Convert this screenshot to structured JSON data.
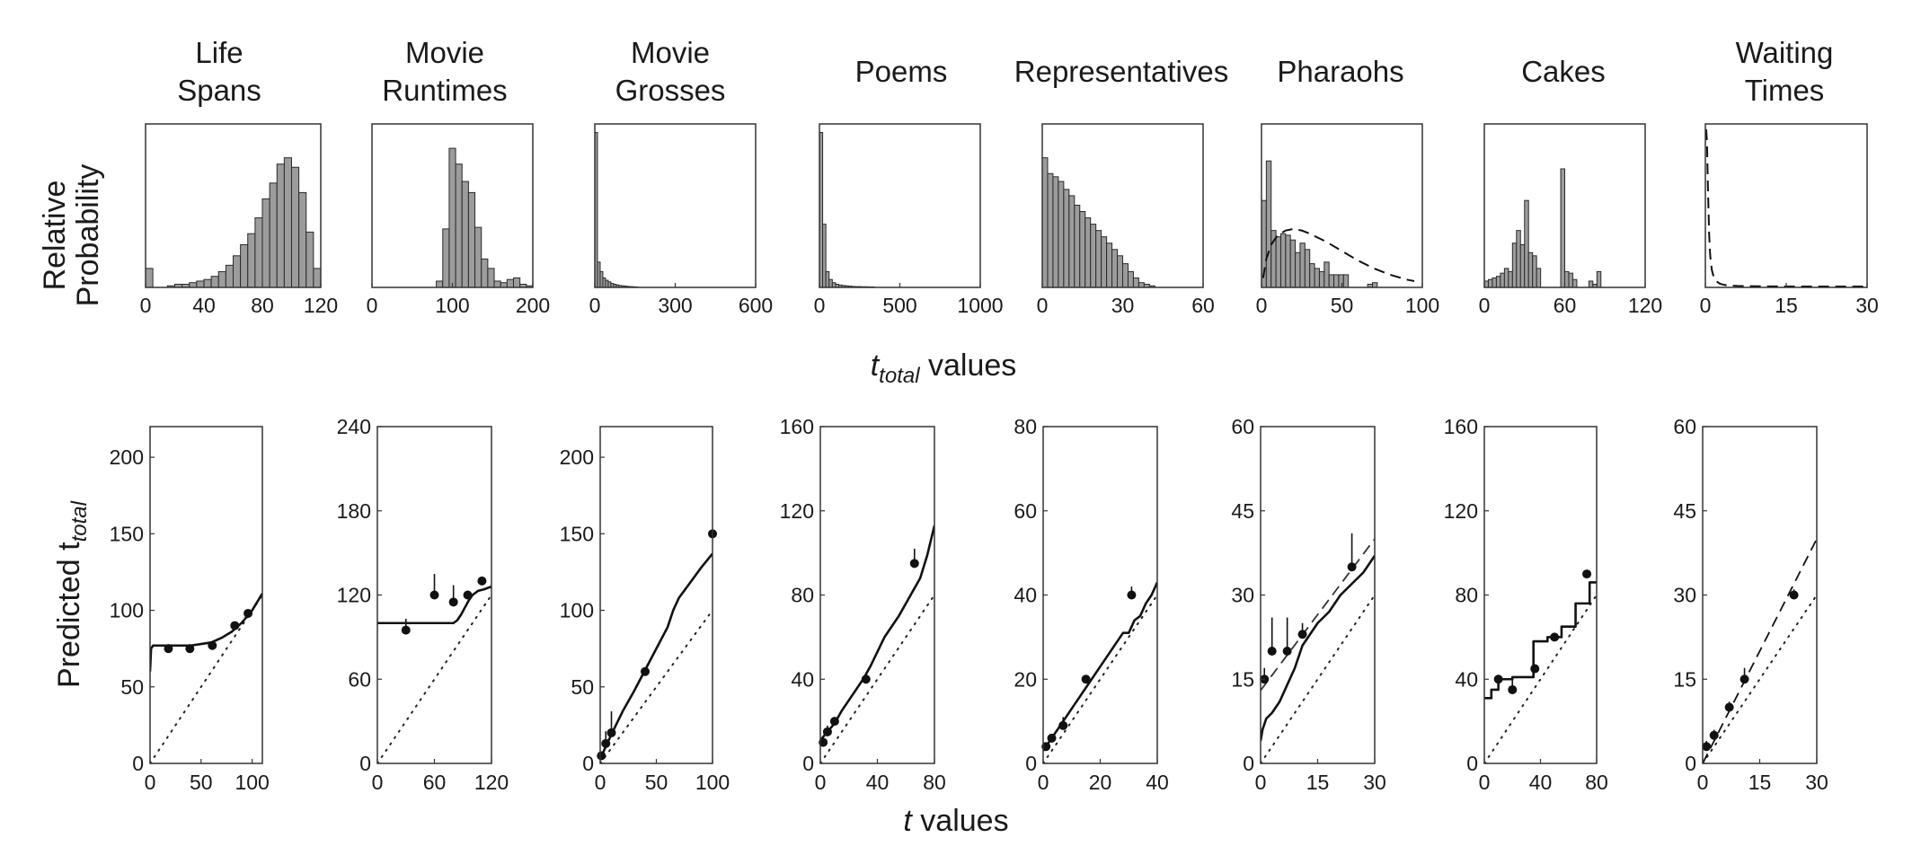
{
  "figure": {
    "top_ylabel": [
      "Relative",
      "Probability"
    ],
    "top_xlabel_main": "t",
    "top_xlabel_sub": "total",
    "top_xlabel_rest": " values",
    "bottom_ylabel_main": "Predicted  t",
    "bottom_ylabel_sub": "total",
    "bottom_xlabel_main": "t",
    "bottom_xlabel_rest": "  values"
  },
  "chart_data": [
    {
      "type": "bar",
      "title": [
        "Life",
        "Spans"
      ],
      "xlim": [
        0,
        120
      ],
      "xticks": [
        0,
        40,
        80,
        120
      ],
      "bin_width": 5,
      "bin_start": 0,
      "values": [
        0.12,
        0,
        0,
        0.01,
        0.02,
        0.02,
        0.03,
        0.04,
        0.05,
        0.07,
        0.1,
        0.14,
        0.2,
        0.27,
        0.34,
        0.44,
        0.56,
        0.66,
        0.78,
        0.82,
        0.76,
        0.6,
        0.35,
        0.12,
        0.03
      ],
      "overlay": null
    },
    {
      "type": "bar",
      "title": [
        "Movie",
        "Runtimes"
      ],
      "xlim": [
        0,
        200
      ],
      "xticks": [
        0,
        100,
        200
      ],
      "bin_width": 8,
      "bin_start": 80,
      "values": [
        0.04,
        0.37,
        0.88,
        0.78,
        0.67,
        0.6,
        0.38,
        0.18,
        0.12,
        0.04,
        0.03,
        0.05,
        0.06,
        0.02,
        0.01,
        0.05
      ],
      "overlay": null
    },
    {
      "type": "bar",
      "title": [
        "Movie",
        "Grosses"
      ],
      "xlim": [
        0,
        600
      ],
      "xticks": [
        0,
        300,
        600
      ],
      "bin_width": 10,
      "bin_start": 0,
      "values": [
        0.98,
        0.16,
        0.1,
        0.06,
        0.045,
        0.035,
        0.025,
        0.02,
        0.015,
        0.012,
        0.01,
        0.008,
        0.006,
        0.005,
        0.004,
        0.003
      ],
      "overlay": null
    },
    {
      "type": "bar",
      "title": [
        "Poems"
      ],
      "xlim": [
        0,
        1000
      ],
      "xticks": [
        0,
        500,
        1000
      ],
      "bin_width": 20,
      "bin_start": 0,
      "values": [
        0.98,
        0.4,
        0.1,
        0.05,
        0.03,
        0.02,
        0.015,
        0.012,
        0.01,
        0.008,
        0.006,
        0.005,
        0.005,
        0.004,
        0.004,
        0.003,
        0.003
      ],
      "overlay": null
    },
    {
      "type": "bar",
      "title": [
        "Representatives"
      ],
      "xlim": [
        0,
        60
      ],
      "xticks": [
        0,
        30,
        60
      ],
      "bin_width": 2,
      "bin_start": 0,
      "values": [
        0.82,
        0.72,
        0.7,
        0.67,
        0.62,
        0.58,
        0.52,
        0.48,
        0.44,
        0.4,
        0.36,
        0.32,
        0.28,
        0.24,
        0.2,
        0.15,
        0.1,
        0.06,
        0.03,
        0.02,
        0.01
      ],
      "overlay": null
    },
    {
      "type": "bar",
      "title": [
        "Pharaohs"
      ],
      "xlim": [
        0,
        100
      ],
      "xticks": [
        0,
        50,
        100
      ],
      "bin_width": 3,
      "bin_start": 0,
      "values": [
        0.55,
        0.8,
        0.36,
        0.32,
        0.34,
        0.33,
        0.3,
        0.22,
        0.28,
        0.24,
        0.15,
        0.12,
        0.1,
        0.16,
        0.08,
        0.08,
        0.08,
        0.08,
        0,
        0,
        0,
        0,
        0.02,
        0.03
      ],
      "overlay": {
        "style": "dashed",
        "x": [
          1,
          3,
          6,
          10,
          15,
          20,
          25,
          30,
          40,
          50,
          60,
          70,
          80,
          90,
          95
        ],
        "y": [
          0.06,
          0.18,
          0.27,
          0.33,
          0.36,
          0.37,
          0.36,
          0.34,
          0.29,
          0.23,
          0.17,
          0.12,
          0.08,
          0.05,
          0.04
        ]
      }
    },
    {
      "type": "bar",
      "title": [
        "Cakes"
      ],
      "xlim": [
        0,
        120
      ],
      "xticks": [
        0,
        60,
        120
      ],
      "bin_width": 3,
      "bin_start": 0,
      "values": [
        0.04,
        0.05,
        0.06,
        0.07,
        0.09,
        0.12,
        0.1,
        0.28,
        0.36,
        0.27,
        0.55,
        0.22,
        0.2,
        0.12,
        0,
        0,
        0,
        0,
        0,
        0.75,
        0.1,
        0.09,
        0.05,
        0,
        0,
        0,
        0.04,
        0.02,
        0.1
      ],
      "overlay": null
    },
    {
      "type": "line",
      "title": [
        "Waiting",
        "Times"
      ],
      "xlim": [
        0,
        30
      ],
      "xticks": [
        0,
        15,
        30
      ],
      "bars": null,
      "overlay": {
        "style": "dashed",
        "x": [
          0.15,
          0.3,
          0.5,
          0.7,
          0.9,
          1.2,
          1.6,
          2,
          2.6,
          3.2,
          4,
          6,
          10,
          15,
          20,
          25,
          30
        ],
        "y": [
          1.0,
          0.92,
          0.6,
          0.34,
          0.2,
          0.11,
          0.06,
          0.04,
          0.025,
          0.018,
          0.013,
          0.009,
          0.007,
          0.006,
          0.006,
          0.006,
          0.006
        ]
      }
    },
    {
      "type": "line",
      "xlim": [
        0,
        110
      ],
      "ylim": [
        0,
        220
      ],
      "xticks": [
        0,
        50,
        100
      ],
      "yticks": [
        0,
        50,
        100,
        150,
        200
      ],
      "model_curve": {
        "style": "solid",
        "x": [
          0,
          1,
          3,
          6,
          10,
          20,
          30,
          40,
          50,
          60,
          70,
          80,
          90,
          100,
          110
        ],
        "y": [
          60,
          75,
          77,
          77,
          77,
          77,
          77,
          77,
          78,
          79,
          82,
          86,
          92,
          100,
          111
        ]
      },
      "reference": {
        "style": "dashed",
        "x": [],
        "y": []
      },
      "points": {
        "x": [
          18,
          39,
          61,
          83,
          96
        ],
        "y": [
          75,
          75,
          77,
          90,
          98
        ],
        "err": [
          1,
          1,
          1,
          2,
          1
        ]
      }
    },
    {
      "type": "line",
      "xlim": [
        0,
        120
      ],
      "ylim": [
        0,
        240
      ],
      "xticks": [
        0,
        60,
        120
      ],
      "yticks": [
        0,
        60,
        120,
        180,
        240
      ],
      "model_curve": {
        "style": "solid",
        "x": [
          0,
          50,
          75,
          80,
          84,
          88,
          92,
          96,
          100,
          106,
          112,
          120
        ],
        "y": [
          100,
          100,
          100,
          100,
          102,
          106,
          111,
          116,
          120,
          123,
          124,
          126
        ]
      },
      "reference": {
        "style": "dashed",
        "x": [],
        "y": []
      },
      "points": {
        "x": [
          30,
          60,
          80,
          95,
          110
        ],
        "y": [
          95,
          120,
          115,
          120,
          130
        ],
        "err": [
          8,
          15,
          12,
          3,
          3
        ]
      }
    },
    {
      "type": "line",
      "xlim": [
        0,
        100
      ],
      "ylim": [
        0,
        220
      ],
      "xticks": [
        0,
        50,
        100
      ],
      "yticks": [
        0,
        50,
        100,
        150,
        200
      ],
      "model_curve": {
        "style": "solid",
        "x": [
          0,
          5,
          10,
          20,
          30,
          40,
          50,
          60,
          65,
          70,
          80,
          90,
          100
        ],
        "y": [
          3,
          11,
          19,
          34,
          47,
          61,
          75,
          89,
          100,
          108,
          118,
          128,
          137
        ]
      },
      "reference": {
        "style": "dashed",
        "x": [],
        "y": []
      },
      "points": {
        "x": [
          1,
          5,
          10,
          40,
          100
        ],
        "y": [
          5,
          13,
          20,
          60,
          150
        ],
        "err": [
          2,
          8,
          14,
          1,
          1
        ]
      }
    },
    {
      "type": "line",
      "xlim": [
        0,
        80
      ],
      "ylim": [
        0,
        160
      ],
      "xticks": [
        0,
        40,
        80
      ],
      "yticks": [
        0,
        40,
        80,
        120,
        160
      ],
      "model_curve": {
        "style": "solid",
        "x": [
          0,
          5,
          10,
          15,
          20,
          25,
          30,
          35,
          40,
          45,
          50,
          55,
          60,
          65,
          70,
          75,
          80
        ],
        "y": [
          11,
          15,
          19,
          25,
          30,
          35,
          40,
          46,
          53,
          60,
          65,
          70,
          76,
          82,
          88,
          99,
          113
        ]
      },
      "reference": {
        "style": "dashed",
        "x": [],
        "y": []
      },
      "points": {
        "x": [
          2,
          5,
          10,
          32,
          66
        ],
        "y": [
          10,
          15,
          20,
          40,
          95
        ],
        "err": [
          3,
          3,
          2,
          3,
          7
        ]
      }
    },
    {
      "type": "line",
      "xlim": [
        0,
        40
      ],
      "ylim": [
        0,
        80
      ],
      "xticks": [
        0,
        20,
        40
      ],
      "yticks": [
        0,
        20,
        40,
        60,
        80
      ],
      "model_curve": {
        "style": "solid",
        "x": [
          0,
          2,
          4,
          6,
          8,
          10,
          12,
          14,
          16,
          18,
          20,
          22,
          24,
          26,
          28,
          30,
          32,
          34,
          36,
          38,
          40
        ],
        "y": [
          3,
          5,
          7,
          9,
          11,
          13,
          15,
          17,
          19,
          21,
          23,
          25,
          27,
          29,
          31,
          31,
          34,
          35,
          38,
          40,
          43
        ]
      },
      "reference": {
        "style": "dashed",
        "x": [],
        "y": []
      },
      "points": {
        "x": [
          1,
          3,
          7,
          15,
          31
        ],
        "y": [
          4,
          6,
          9,
          20,
          40
        ],
        "err": [
          1,
          1,
          2,
          1,
          2
        ]
      }
    },
    {
      "type": "line",
      "xlim": [
        0,
        30
      ],
      "ylim": [
        0,
        60
      ],
      "xticks": [
        0,
        15,
        30
      ],
      "yticks": [
        0,
        15,
        30,
        45,
        60
      ],
      "model_curve": {
        "style": "solid",
        "x": [
          0,
          0.5,
          1.5,
          3,
          5,
          7,
          9,
          11,
          13,
          15,
          18,
          21,
          24,
          27,
          30
        ],
        "y": [
          4,
          6,
          8,
          9,
          11,
          14,
          17,
          21,
          23,
          25,
          27,
          30,
          32,
          34,
          37
        ]
      },
      "reference": {
        "style": "dashed",
        "x": [
          0,
          30
        ],
        "y": [
          13,
          40
        ]
      },
      "points": {
        "x": [
          1,
          3,
          7,
          11,
          24
        ],
        "y": [
          15,
          20,
          20,
          23,
          35
        ],
        "err": [
          2,
          6,
          6,
          2,
          6
        ]
      }
    },
    {
      "type": "line",
      "xlim": [
        0,
        80
      ],
      "ylim": [
        0,
        160
      ],
      "xticks": [
        0,
        40,
        80
      ],
      "yticks": [
        0,
        40,
        80,
        120,
        160
      ],
      "model_curve": {
        "style": "solid",
        "x": [
          0,
          5,
          5,
          10,
          10,
          20,
          20,
          35,
          35,
          45,
          45,
          55,
          55,
          65,
          65,
          75,
          75,
          80
        ],
        "y": [
          31,
          31,
          35,
          35,
          40,
          40,
          41,
          41,
          58,
          58,
          60,
          60,
          65,
          65,
          76,
          76,
          86,
          86
        ]
      },
      "reference": {
        "style": "dashed",
        "x": [],
        "y": []
      },
      "points": {
        "x": [
          10,
          20,
          36,
          50,
          73
        ],
        "y": [
          40,
          35,
          45,
          60,
          90
        ],
        "err": [
          1,
          6,
          2,
          1,
          1
        ]
      }
    },
    {
      "type": "line",
      "xlim": [
        0,
        30
      ],
      "ylim": [
        0,
        60
      ],
      "xticks": [
        0,
        15,
        30
      ],
      "yticks": [
        0,
        15,
        30,
        45,
        60
      ],
      "model_curve": {
        "style": "dashed",
        "x": [
          0,
          30
        ],
        "y": [
          0,
          40
        ]
      },
      "reference": {
        "style": "dashed",
        "x": [],
        "y": []
      },
      "points": {
        "x": [
          1,
          3,
          7,
          11,
          24
        ],
        "y": [
          3,
          5,
          10,
          15,
          30
        ],
        "err": [
          1,
          1,
          1,
          2,
          1
        ]
      }
    }
  ]
}
